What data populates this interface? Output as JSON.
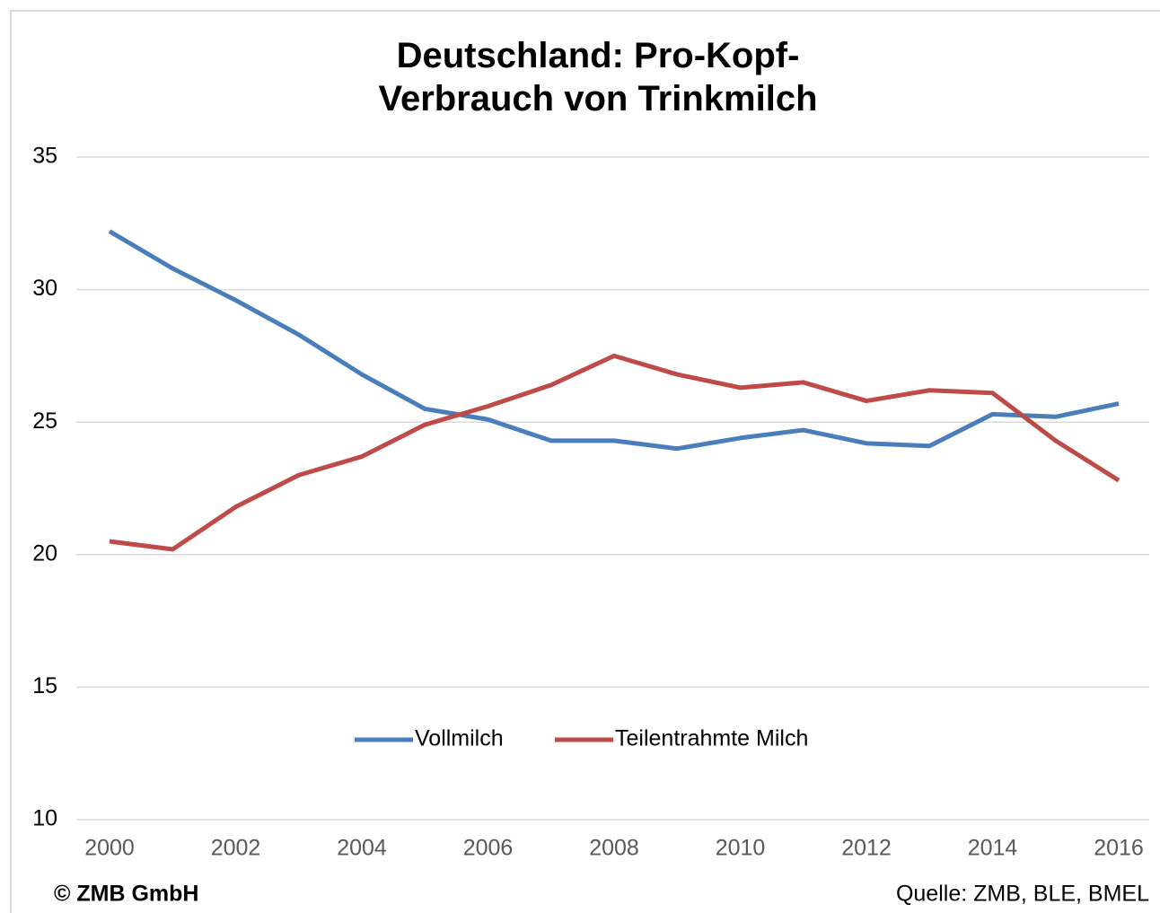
{
  "chart_data": {
    "type": "line",
    "title": "Deutschland: Pro-Kopf-Verbrauch von Trinkmilch",
    "x": [
      2000,
      2001,
      2002,
      2003,
      2004,
      2005,
      2006,
      2007,
      2008,
      2009,
      2010,
      2011,
      2012,
      2013,
      2014,
      2015,
      2016
    ],
    "series": [
      {
        "name": "Vollmilch",
        "color": "#4a7ebb",
        "values": [
          32.2,
          30.8,
          29.6,
          28.3,
          26.8,
          25.5,
          25.1,
          24.3,
          24.3,
          24.0,
          24.4,
          24.7,
          24.2,
          24.1,
          25.3,
          25.2,
          25.7
        ]
      },
      {
        "name": "Teilentrahmte Milch",
        "color": "#be4b48",
        "values": [
          20.5,
          20.2,
          21.8,
          23.0,
          23.7,
          24.9,
          25.6,
          26.4,
          27.5,
          26.8,
          26.3,
          26.5,
          25.8,
          26.2,
          26.1,
          24.3,
          22.8
        ]
      }
    ],
    "xlim": [
      2000,
      2016
    ],
    "xticks": [
      2000,
      2002,
      2004,
      2006,
      2008,
      2010,
      2012,
      2014,
      2016
    ],
    "ylim": [
      10,
      35
    ],
    "yticks": [
      10,
      15,
      20,
      25,
      30,
      35
    ],
    "grid": true,
    "legend": "bottom",
    "copyright": "© ZMB GmbH",
    "source": "Quelle: ZMB, BLE, BMEL"
  }
}
